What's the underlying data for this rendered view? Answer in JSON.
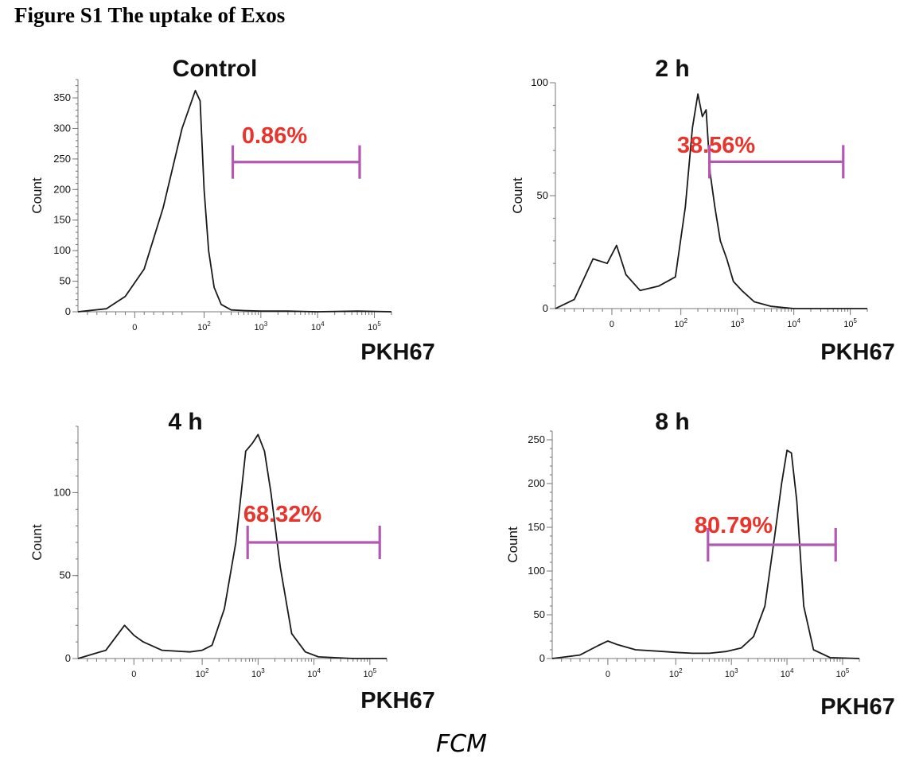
{
  "figure_title": "Figure S1 The uptake of Exos",
  "caption": "FCM",
  "chart_data": [
    {
      "type": "area",
      "title": "Control",
      "xlabel": "PKH67",
      "ylabel": "Count",
      "xscale": "biexponential",
      "xlim": [
        -60,
        200000
      ],
      "ylim": [
        0,
        380
      ],
      "yticks": [
        0,
        50,
        100,
        150,
        200,
        250,
        300,
        350
      ],
      "xticks": [
        {
          "value": 0,
          "base": "0",
          "exp": ""
        },
        {
          "value": 100,
          "base": "10",
          "exp": "2"
        },
        {
          "value": 1000,
          "base": "10",
          "exp": "3"
        },
        {
          "value": 10000,
          "base": "10",
          "exp": "4"
        },
        {
          "value": 100000,
          "base": "10",
          "exp": "5"
        }
      ],
      "gate": {
        "label": "0.86%",
        "x_start": 320,
        "x_end": 55000,
        "y": 245
      },
      "series": [
        {
          "name": "Control",
          "x": [
            -60,
            -30,
            -10,
            10,
            30,
            50,
            70,
            85,
            100,
            120,
            150,
            200,
            300,
            500,
            1000,
            3000,
            10000,
            50000,
            200000
          ],
          "y": [
            0,
            5,
            25,
            70,
            170,
            300,
            362,
            345,
            200,
            100,
            40,
            12,
            3,
            2,
            1,
            1,
            0,
            1,
            0
          ]
        }
      ]
    },
    {
      "type": "area",
      "title": "2 h",
      "xlabel": "PKH67",
      "ylabel": "Count",
      "xscale": "biexponential",
      "xlim": [
        -60,
        200000
      ],
      "ylim": [
        0,
        100
      ],
      "yticks": [
        0,
        50,
        100
      ],
      "xticks": [
        {
          "value": 0,
          "base": "0",
          "exp": ""
        },
        {
          "value": 100,
          "base": "10",
          "exp": "2"
        },
        {
          "value": 1000,
          "base": "10",
          "exp": "3"
        },
        {
          "value": 10000,
          "base": "10",
          "exp": "4"
        },
        {
          "value": 100000,
          "base": "10",
          "exp": "5"
        }
      ],
      "gate": {
        "label": "38.56%",
        "x_start": 320,
        "x_end": 75000,
        "y": 65
      },
      "series": [
        {
          "name": "2 h",
          "x": [
            -60,
            -40,
            -20,
            -5,
            5,
            15,
            30,
            50,
            80,
            120,
            160,
            200,
            240,
            280,
            330,
            400,
            500,
            650,
            850,
            1200,
            2000,
            4000,
            10000,
            50000,
            200000
          ],
          "y": [
            0,
            4,
            22,
            20,
            28,
            15,
            8,
            10,
            14,
            45,
            80,
            95,
            85,
            88,
            60,
            45,
            30,
            22,
            12,
            8,
            3,
            1,
            0,
            0,
            0
          ]
        }
      ]
    },
    {
      "type": "area",
      "title": "4 h",
      "xlabel": "PKH67",
      "ylabel": "Count",
      "xscale": "biexponential",
      "xlim": [
        -60,
        200000
      ],
      "ylim": [
        0,
        140
      ],
      "yticks": [
        0,
        50,
        100
      ],
      "xticks": [
        {
          "value": 0,
          "base": "0",
          "exp": ""
        },
        {
          "value": 100,
          "base": "10",
          "exp": "2"
        },
        {
          "value": 1000,
          "base": "10",
          "exp": "3"
        },
        {
          "value": 10000,
          "base": "10",
          "exp": "4"
        },
        {
          "value": 100000,
          "base": "10",
          "exp": "5"
        }
      ],
      "gate": {
        "label": "68.32%",
        "x_start": 650,
        "x_end": 150000,
        "y": 70
      },
      "series": [
        {
          "name": "4 h",
          "x": [
            -60,
            -30,
            -10,
            0,
            10,
            30,
            60,
            100,
            150,
            250,
            400,
            600,
            800,
            1000,
            1300,
            1700,
            2500,
            4000,
            7000,
            12000,
            50000,
            200000
          ],
          "y": [
            0,
            5,
            20,
            14,
            10,
            5,
            4,
            5,
            8,
            30,
            70,
            125,
            130,
            135,
            125,
            100,
            55,
            15,
            4,
            1,
            0,
            0
          ]
        }
      ]
    },
    {
      "type": "area",
      "title": "8 h",
      "xlabel": "PKH67",
      "ylabel": "Count",
      "xscale": "biexponential",
      "xlim": [
        -60,
        200000
      ],
      "ylim": [
        0,
        260
      ],
      "yticks": [
        0,
        50,
        100,
        150,
        200,
        250
      ],
      "xticks": [
        {
          "value": 0,
          "base": "0",
          "exp": ""
        },
        {
          "value": 100,
          "base": "10",
          "exp": "2"
        },
        {
          "value": 1000,
          "base": "10",
          "exp": "3"
        },
        {
          "value": 10000,
          "base": "10",
          "exp": "4"
        },
        {
          "value": 100000,
          "base": "10",
          "exp": "5"
        }
      ],
      "gate": {
        "label": "80.79%",
        "x_start": 380,
        "x_end": 75000,
        "y": 130
      },
      "series": [
        {
          "name": "8 h",
          "x": [
            -60,
            -30,
            -10,
            0,
            10,
            30,
            60,
            100,
            200,
            400,
            800,
            1500,
            2500,
            4000,
            6000,
            8000,
            10000,
            12000,
            15000,
            20000,
            30000,
            60000,
            200000
          ],
          "y": [
            0,
            4,
            15,
            20,
            16,
            10,
            8,
            7,
            6,
            6,
            8,
            12,
            25,
            60,
            140,
            200,
            238,
            235,
            180,
            60,
            10,
            1,
            0
          ]
        }
      ]
    }
  ]
}
